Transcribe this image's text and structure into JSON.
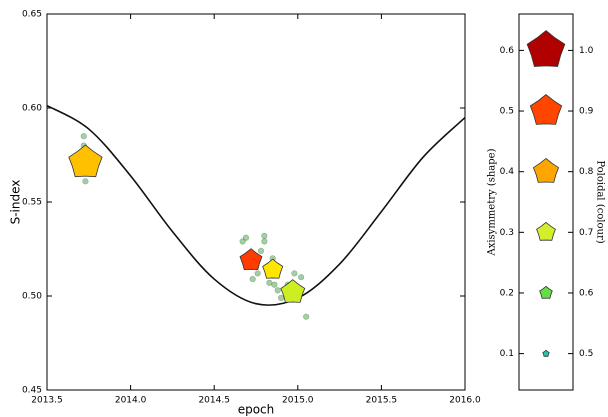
{
  "chart_data": [
    {
      "type": "scatter",
      "xlabel": "epoch",
      "ylabel": "S-index",
      "xlim": [
        2013.5,
        2016.0
      ],
      "ylim": [
        0.45,
        0.65
      ],
      "xticks": [
        2013.5,
        {
          "value": 2014,
          "label": "2014.0"
        },
        2014.5,
        {
          "value": 2015,
          "label": "2015.0"
        },
        2015.5,
        {
          "value": 2016,
          "label": "2016.0"
        }
      ],
      "yticks": [
        0.45,
        {
          "value": 0.5,
          "label": "0.50"
        },
        0.55,
        {
          "value": 0.6,
          "label": "0.60"
        },
        0.65
      ],
      "curve": {
        "color": "#111111",
        "x": [
          2013.5,
          2013.75,
          2014.0,
          2014.25,
          2014.5,
          2014.75,
          2015.0,
          2015.25,
          2015.5,
          2015.75,
          2016.0
        ],
        "y": [
          0.6013,
          0.5888,
          0.5639,
          0.5343,
          0.509,
          0.4959,
          0.4989,
          0.517,
          0.5449,
          0.5739,
          0.5949
        ]
      },
      "points": {
        "color": "#4a9e4a",
        "x": [
          2013.72,
          2013.72,
          2013.73,
          2013.74,
          2013.73,
          2014.67,
          2014.69,
          2014.8,
          2014.8,
          2014.78,
          2014.76,
          2014.73,
          2014.83,
          2014.86,
          2014.88,
          2014.9,
          2014.93,
          2014.94,
          2014.98,
          2015.02,
          2015.05,
          2014.96,
          2014.85
        ],
        "y": [
          0.585,
          0.58,
          0.575,
          0.566,
          0.561,
          0.529,
          0.531,
          0.532,
          0.529,
          0.524,
          0.512,
          0.509,
          0.507,
          0.506,
          0.503,
          0.499,
          0.501,
          0.506,
          0.512,
          0.51,
          0.489,
          0.502,
          0.52
        ]
      },
      "stars": {
        "x": [
          2013.73,
          2014.72,
          2014.85,
          2014.97
        ],
        "y": [
          0.571,
          0.519,
          0.514,
          0.502
        ],
        "shape": [
          0.53,
          0.35,
          0.32,
          0.38
        ],
        "colour": [
          0.76,
          0.92,
          0.73,
          0.68
        ],
        "color": [
          "#ffc000",
          "#ff3c00",
          "#ffe600",
          "#ccee22"
        ]
      }
    },
    {
      "type": "legend",
      "ylabel": "Axisymmetry (shape)",
      "y2label": "Poloidal (colour)",
      "ylim": [
        0.04,
        0.66
      ],
      "yticks": [
        0.1,
        0.2,
        0.3,
        0.4,
        0.5,
        0.6
      ],
      "y2ticks": [
        0.5,
        0.6,
        0.7,
        0.8,
        0.9,
        {
          "value": 1,
          "label": "1.0"
        }
      ],
      "colors": [
        "#22ccaa",
        "#66dd44",
        "#d4ee2e",
        "#ffa500",
        "#ff4500",
        "#b00000"
      ]
    }
  ]
}
